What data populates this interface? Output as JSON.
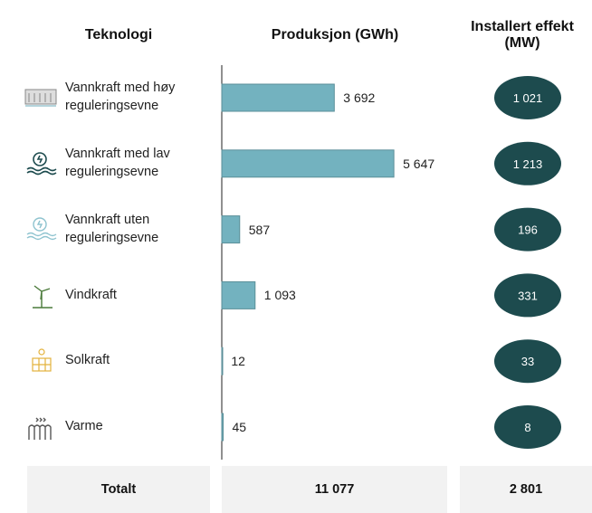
{
  "chart_data": {
    "type": "bar",
    "orientation": "horizontal",
    "headers": [
      "Teknologi",
      "Produksjon (GWh)",
      "Installert effekt (MW)"
    ],
    "categories": [
      "Vannkraft med høy reguleringsevne",
      "Vannkraft med lav reguleringsevne",
      "Vannkraft uten reguleringsevne",
      "Vindkraft",
      "Solkraft",
      "Varme"
    ],
    "values": [
      3692,
      5647,
      587,
      1093,
      12,
      45
    ],
    "value_labels": [
      "3 692",
      "5 647",
      "587",
      "1 093",
      "12",
      "45"
    ],
    "color": "#73b2bf",
    "xlim": [
      0,
      6000
    ],
    "capacity": {
      "values": [
        1021,
        1213,
        196,
        331,
        33,
        8
      ],
      "value_labels": [
        "1 021",
        "1 213",
        "196",
        "331",
        "33",
        "8"
      ],
      "color": "#1d4b4e"
    },
    "total": {
      "label": "Totalt",
      "values": [
        11077,
        2801
      ],
      "value_labels": [
        "11 077",
        "2 801"
      ]
    }
  }
}
